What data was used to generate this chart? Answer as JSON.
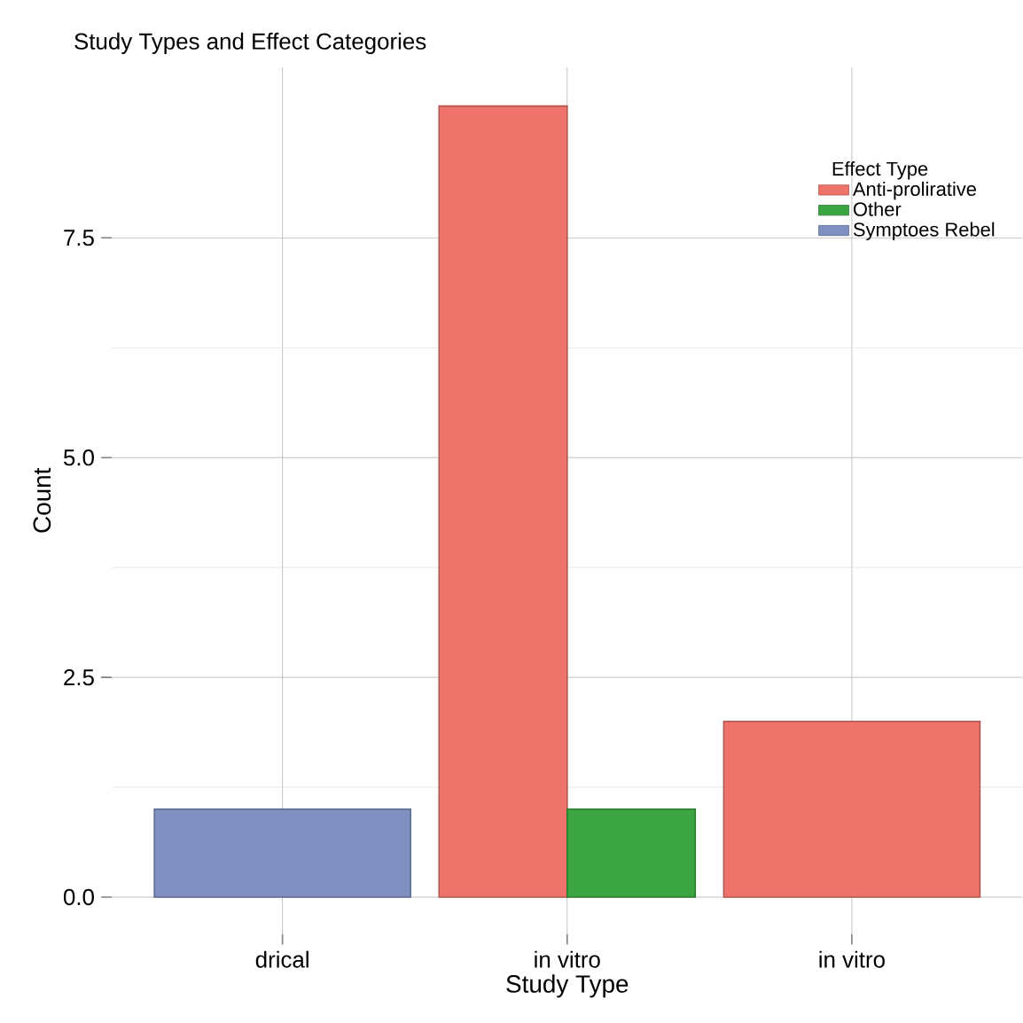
{
  "chart_data": {
    "type": "bar",
    "title": "Study Types and Effect Categories",
    "xlabel": "Study Type",
    "ylabel": "Count",
    "legend_title": "Effect Type",
    "categories": [
      "drical",
      "in vitro",
      "in vitro"
    ],
    "series": [
      {
        "name": "Anti-prolirative",
        "color": "#ee736b",
        "values": [
          null,
          9,
          2
        ]
      },
      {
        "name": "Other",
        "color": "#3aa541",
        "values": [
          null,
          1,
          null
        ]
      },
      {
        "name": "Symptoes Rebel",
        "color": "#7e8fc0",
        "values": [
          1,
          null,
          null
        ]
      }
    ],
    "ylim": [
      -0.42,
      9.44
    ],
    "yticks": [
      {
        "value": 0,
        "label": "0.0"
      },
      {
        "value": 2.5,
        "label": "2.5"
      },
      {
        "value": 5,
        "label": "5.0"
      },
      {
        "value": 7.5,
        "label": "7.5"
      }
    ],
    "grid": true,
    "legend": "top right"
  }
}
